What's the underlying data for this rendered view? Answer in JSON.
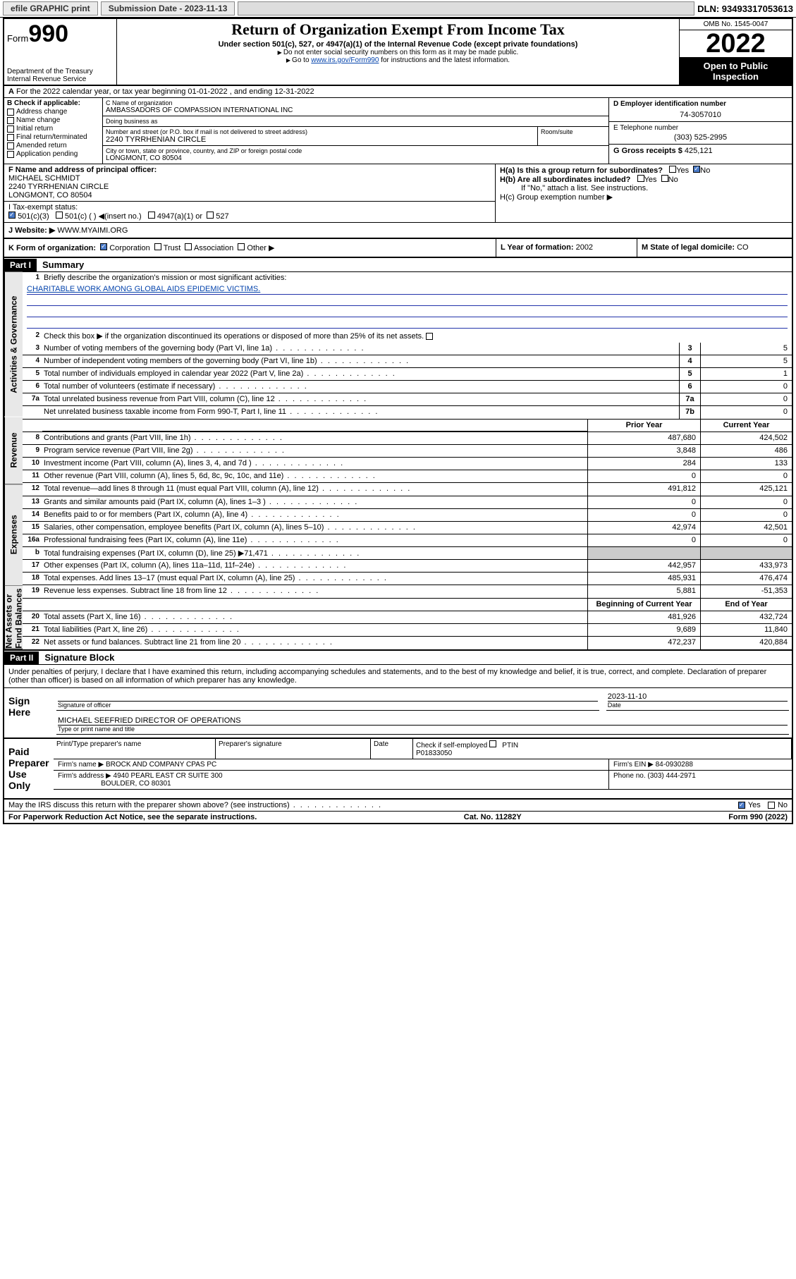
{
  "topbar": {
    "efile": "efile GRAPHIC print",
    "subdate_label": "Submission Date - ",
    "subdate": "2023-11-13",
    "dln": "DLN: 93493317053613"
  },
  "header": {
    "form_prefix": "Form",
    "form_num": "990",
    "dept": "Department of the Treasury\nInternal Revenue Service",
    "title": "Return of Organization Exempt From Income Tax",
    "subtitle": "Under section 501(c), 527, or 4947(a)(1) of the Internal Revenue Code (except private foundations)",
    "note1": "Do not enter social security numbers on this form as it may be made public.",
    "note2_pre": "Go to ",
    "note2_link": "www.irs.gov/Form990",
    "note2_post": " for instructions and the latest information.",
    "omb": "OMB No. 1545-0047",
    "year": "2022",
    "open": "Open to Public Inspection"
  },
  "lineA": "For the 2022 calendar year, or tax year beginning 01-01-2022   , and ending 12-31-2022",
  "boxB": {
    "header": "B Check if applicable:",
    "items": [
      "Address change",
      "Name change",
      "Initial return",
      "Final return/terminated",
      "Amended return",
      "Application pending"
    ]
  },
  "boxC": {
    "name_label": "C Name of organization",
    "name": "AMBASSADORS OF COMPASSION INTERNATIONAL INC",
    "dba_label": "Doing business as",
    "dba": "",
    "street_label": "Number and street (or P.O. box if mail is not delivered to street address)",
    "street": "2240 TYRRHENIAN CIRCLE",
    "room_label": "Room/suite",
    "room": "",
    "city_label": "City or town, state or province, country, and ZIP or foreign postal code",
    "city": "LONGMONT, CO  80504"
  },
  "boxD": {
    "label": "D Employer identification number",
    "val": "74-3057010"
  },
  "boxE": {
    "label": "E Telephone number",
    "val": "(303) 525-2995"
  },
  "boxG": {
    "label": "G Gross receipts $",
    "val": "425,121"
  },
  "boxF": {
    "label": "F Name and address of principal officer:",
    "name": "MICHAEL SCHMIDT",
    "addr1": "2240 TYRRHENIAN CIRCLE",
    "addr2": "LONGMONT, CO  80504"
  },
  "boxH": {
    "ha": "H(a)  Is this a group return for subordinates?",
    "hb": "H(b)  Are all subordinates included?",
    "hb_note": "If \"No,\" attach a list. See instructions.",
    "hc": "H(c)  Group exemption number ▶",
    "yes": "Yes",
    "no": "No"
  },
  "boxI": {
    "label": "I   Tax-exempt status:",
    "opts": [
      "501(c)(3)",
      "501(c) (  ) ◀(insert no.)",
      "4947(a)(1) or",
      "527"
    ]
  },
  "boxJ": {
    "label": "J   Website: ▶",
    "val": "WWW.MYAIMI.ORG"
  },
  "boxK": {
    "label": "K Form of organization:",
    "opts": [
      "Corporation",
      "Trust",
      "Association",
      "Other ▶"
    ]
  },
  "boxL": {
    "label": "L Year of formation:",
    "val": "2002"
  },
  "boxM": {
    "label": "M State of legal domicile:",
    "val": "CO"
  },
  "part1": {
    "hdr": "Part I",
    "title": "Summary"
  },
  "summary": {
    "q1": "Briefly describe the organization's mission or most significant activities:",
    "mission": "CHARITABLE WORK AMONG GLOBAL AIDS EPIDEMIC VICTIMS.",
    "q2": "Check this box ▶        if the organization discontinued its operations or disposed of more than 25% of its net assets.",
    "lines_gov": [
      {
        "n": "3",
        "t": "Number of voting members of the governing body (Part VI, line 1a)",
        "box": "3",
        "v": "5"
      },
      {
        "n": "4",
        "t": "Number of independent voting members of the governing body (Part VI, line 1b)",
        "box": "4",
        "v": "5"
      },
      {
        "n": "5",
        "t": "Total number of individuals employed in calendar year 2022 (Part V, line 2a)",
        "box": "5",
        "v": "1"
      },
      {
        "n": "6",
        "t": "Total number of volunteers (estimate if necessary)",
        "box": "6",
        "v": "0"
      },
      {
        "n": "7a",
        "t": "Total unrelated business revenue from Part VIII, column (C), line 12",
        "box": "7a",
        "v": "0"
      },
      {
        "n": "",
        "t": "Net unrelated business taxable income from Form 990-T, Part I, line 11",
        "box": "7b",
        "v": "0"
      }
    ],
    "col_prior": "Prior Year",
    "col_curr": "Current Year",
    "lines_rev": [
      {
        "n": "8",
        "t": "Contributions and grants (Part VIII, line 1h)",
        "p": "487,680",
        "c": "424,502"
      },
      {
        "n": "9",
        "t": "Program service revenue (Part VIII, line 2g)",
        "p": "3,848",
        "c": "486"
      },
      {
        "n": "10",
        "t": "Investment income (Part VIII, column (A), lines 3, 4, and 7d )",
        "p": "284",
        "c": "133"
      },
      {
        "n": "11",
        "t": "Other revenue (Part VIII, column (A), lines 5, 6d, 8c, 9c, 10c, and 11e)",
        "p": "0",
        "c": "0"
      },
      {
        "n": "12",
        "t": "Total revenue—add lines 8 through 11 (must equal Part VIII, column (A), line 12)",
        "p": "491,812",
        "c": "425,121"
      }
    ],
    "lines_exp": [
      {
        "n": "13",
        "t": "Grants and similar amounts paid (Part IX, column (A), lines 1–3 )",
        "p": "0",
        "c": "0"
      },
      {
        "n": "14",
        "t": "Benefits paid to or for members (Part IX, column (A), line 4)",
        "p": "0",
        "c": "0"
      },
      {
        "n": "15",
        "t": "Salaries, other compensation, employee benefits (Part IX, column (A), lines 5–10)",
        "p": "42,974",
        "c": "42,501"
      },
      {
        "n": "16a",
        "t": "Professional fundraising fees (Part IX, column (A), line 11e)",
        "p": "0",
        "c": "0"
      },
      {
        "n": "b",
        "t": "Total fundraising expenses (Part IX, column (D), line 25) ▶71,471",
        "p": "",
        "c": ""
      },
      {
        "n": "17",
        "t": "Other expenses (Part IX, column (A), lines 11a–11d, 11f–24e)",
        "p": "442,957",
        "c": "433,973"
      },
      {
        "n": "18",
        "t": "Total expenses. Add lines 13–17 (must equal Part IX, column (A), line 25)",
        "p": "485,931",
        "c": "476,474"
      },
      {
        "n": "19",
        "t": "Revenue less expenses. Subtract line 18 from line 12",
        "p": "5,881",
        "c": "-51,353"
      }
    ],
    "col_begin": "Beginning of Current Year",
    "col_end": "End of Year",
    "lines_net": [
      {
        "n": "20",
        "t": "Total assets (Part X, line 16)",
        "p": "481,926",
        "c": "432,724"
      },
      {
        "n": "21",
        "t": "Total liabilities (Part X, line 26)",
        "p": "9,689",
        "c": "11,840"
      },
      {
        "n": "22",
        "t": "Net assets or fund balances. Subtract line 21 from line 20",
        "p": "472,237",
        "c": "420,884"
      }
    ]
  },
  "vtabs": {
    "gov": "Activities & Governance",
    "rev": "Revenue",
    "exp": "Expenses",
    "net": "Net Assets or Fund Balances"
  },
  "part2": {
    "hdr": "Part II",
    "title": "Signature Block"
  },
  "sig_decl": "Under penalties of perjury, I declare that I have examined this return, including accompanying schedules and statements, and to the best of my knowledge and belief, it is true, correct, and complete. Declaration of preparer (other than officer) is based on all information of which preparer has any knowledge.",
  "sign": {
    "here": "Sign Here",
    "sig_officer": "Signature of officer",
    "date": "Date",
    "sig_date": "2023-11-10",
    "name": "MICHAEL SEEFRIED  DIRECTOR OF OPERATIONS",
    "name_label": "Type or print name and title"
  },
  "paid": {
    "here": "Paid Preparer Use Only",
    "h1": "Print/Type preparer's name",
    "h2": "Preparer's signature",
    "h3": "Date",
    "h4_check": "Check        if self-employed",
    "h4_ptin": "PTIN",
    "ptin": "P01833050",
    "firm_label": "Firm's name   ▶",
    "firm": "BROCK AND COMPANY CPAS PC",
    "ein_label": "Firm's EIN ▶",
    "ein": "84-0930288",
    "addr_label": "Firm's address ▶",
    "addr1": "4940 PEARL EAST CR SUITE 300",
    "addr2": "BOULDER, CO  80301",
    "phone_label": "Phone no.",
    "phone": "(303) 444-2971"
  },
  "may": "May the IRS discuss this return with the preparer shown above? (see instructions)",
  "footer": {
    "left": "For Paperwork Reduction Act Notice, see the separate instructions.",
    "mid": "Cat. No. 11282Y",
    "right": "Form 990 (2022)"
  }
}
